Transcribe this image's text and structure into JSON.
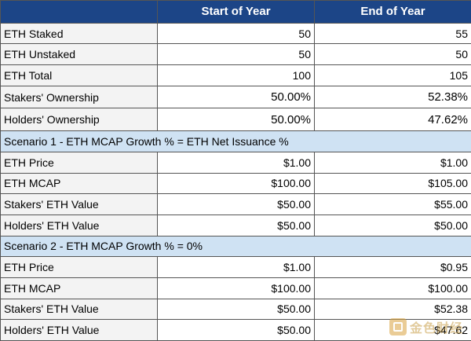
{
  "header": {
    "col1": "",
    "col2": "Start of Year",
    "col3": "End of Year"
  },
  "rows_top": [
    {
      "label": "ETH Staked",
      "start": "50",
      "end": "55",
      "big": false
    },
    {
      "label": "ETH Unstaked",
      "start": "50",
      "end": "50",
      "big": false
    },
    {
      "label": "ETH Total",
      "start": "100",
      "end": "105",
      "big": false
    },
    {
      "label": "Stakers' Ownership",
      "start": "50.00%",
      "end": "52.38%",
      "big": true
    },
    {
      "label": "Holders' Ownership",
      "start": "50.00%",
      "end": "47.62%",
      "big": true
    }
  ],
  "scenario1": {
    "title": "Scenario 1 - ETH MCAP Growth % = ETH Net Issuance %",
    "rows": [
      {
        "label": "ETH Price",
        "start": "$1.00",
        "end": "$1.00"
      },
      {
        "label": "ETH MCAP",
        "start": "$100.00",
        "end": "$105.00"
      },
      {
        "label": "Stakers' ETH Value",
        "start": "$50.00",
        "end": "$55.00"
      },
      {
        "label": "Holders' ETH Value",
        "start": "$50.00",
        "end": "$50.00"
      }
    ]
  },
  "scenario2": {
    "title": "Scenario 2 - ETH MCAP Growth % = 0%",
    "rows": [
      {
        "label": "ETH Price",
        "start": "$1.00",
        "end": "$0.95"
      },
      {
        "label": "ETH MCAP",
        "start": "$100.00",
        "end": "$100.00"
      },
      {
        "label": "Stakers' ETH Value",
        "start": "$50.00",
        "end": "$52.38"
      },
      {
        "label": "Holders' ETH Value",
        "start": "$50.00",
        "end": "$47.62"
      }
    ]
  },
  "watermark": {
    "text": "金色财经",
    "color": "#d9a441"
  }
}
